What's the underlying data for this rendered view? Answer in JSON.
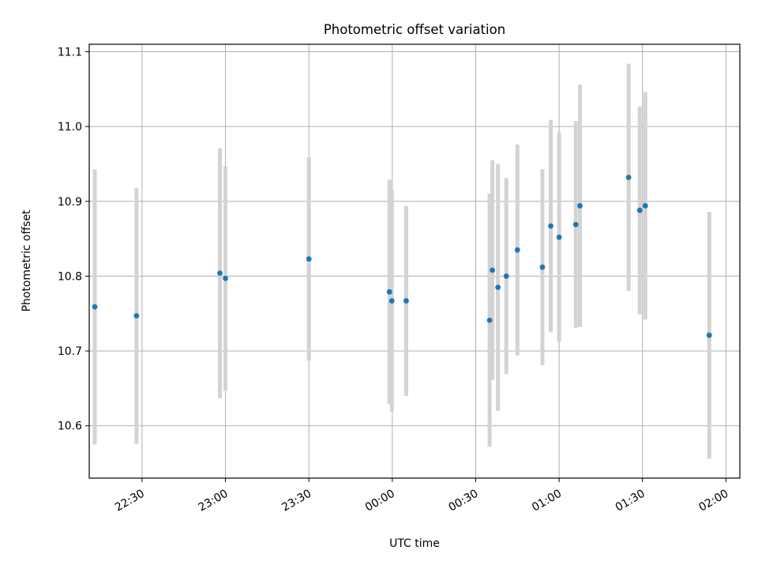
{
  "chart_data": {
    "type": "scatter",
    "title": "Photometric offset variation",
    "xlabel": "UTC time",
    "ylabel": "Photometric offset",
    "grid": true,
    "x_ticks": [
      "22:30",
      "23:00",
      "23:30",
      "00:00",
      "00:30",
      "01:00",
      "01:30",
      "02:00"
    ],
    "y_ticks": [
      "10.6",
      "10.7",
      "10.8",
      "10.9",
      "11.0",
      "11.1"
    ],
    "y_tick_values": [
      10.6,
      10.7,
      10.8,
      10.9,
      11.0,
      11.1
    ],
    "xlim": [
      "2013-01-01 22:11",
      "2013-01-02 02:05"
    ],
    "ylim": [
      10.53,
      11.11
    ],
    "point_color": "#1f77b4",
    "errorbar_color": "#d3d3d3",
    "points": [
      {
        "t": "22:13",
        "y": 10.759,
        "err": 0.184
      },
      {
        "t": "22:28",
        "y": 10.747,
        "err": 0.171
      },
      {
        "t": "22:58",
        "y": 10.804,
        "err": 0.167
      },
      {
        "t": "23:00",
        "y": 10.797,
        "err": 0.15
      },
      {
        "t": "23:30",
        "y": 10.823,
        "err": 0.136
      },
      {
        "t": "23:59",
        "y": 10.779,
        "err": 0.15
      },
      {
        "t": "23:59:50",
        "y": 10.767,
        "err": 0.148
      },
      {
        "t": "00:05",
        "y": 10.767,
        "err": 0.127
      },
      {
        "t": "00:35",
        "y": 10.741,
        "err": 0.169
      },
      {
        "t": "00:36",
        "y": 10.808,
        "err": 0.147
      },
      {
        "t": "00:38",
        "y": 10.785,
        "err": 0.165
      },
      {
        "t": "00:41",
        "y": 10.8,
        "err": 0.131
      },
      {
        "t": "00:45",
        "y": 10.835,
        "err": 0.141
      },
      {
        "t": "00:54",
        "y": 10.812,
        "err": 0.131
      },
      {
        "t": "00:57",
        "y": 10.867,
        "err": 0.142
      },
      {
        "t": "01:00",
        "y": 10.852,
        "err": 0.14
      },
      {
        "t": "01:06",
        "y": 10.869,
        "err": 0.138
      },
      {
        "t": "01:07:30",
        "y": 10.894,
        "err": 0.162
      },
      {
        "t": "01:25",
        "y": 10.932,
        "err": 0.152
      },
      {
        "t": "01:29",
        "y": 10.888,
        "err": 0.139
      },
      {
        "t": "01:31",
        "y": 10.894,
        "err": 0.152
      },
      {
        "t": "01:54",
        "y": 10.721,
        "err": 0.165
      }
    ]
  }
}
